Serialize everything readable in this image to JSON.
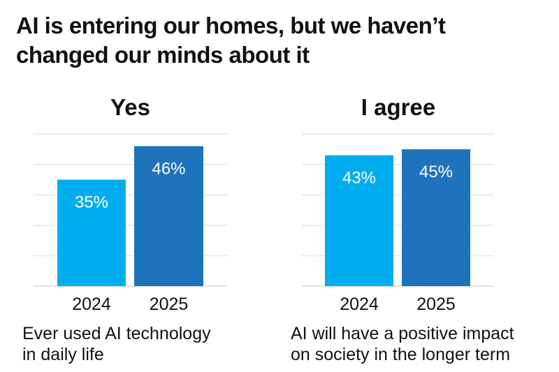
{
  "title_line1": "AI is entering our homes, but we haven’t",
  "title_line2": "changed our minds about it",
  "colors": {
    "bar_2024": "#00aeef",
    "bar_2025": "#1f73bc",
    "grid": "#e6e6e6",
    "text": "#111111",
    "label": "#ffffff"
  },
  "chart_data": [
    {
      "type": "bar",
      "title": "Yes",
      "caption_line1": "Ever used AI technology",
      "caption_line2": "in daily life",
      "categories": [
        "2024",
        "2025"
      ],
      "values": [
        35,
        46
      ],
      "data_labels": [
        "35%",
        "46%"
      ],
      "ylim": [
        0,
        50
      ],
      "grid": true,
      "unit": "%"
    },
    {
      "type": "bar",
      "title": "I agree",
      "caption_line1": "AI will have a positive impact",
      "caption_line2": "on society in the longer term",
      "categories": [
        "2024",
        "2025"
      ],
      "values": [
        43,
        45
      ],
      "data_labels": [
        "43%",
        "45%"
      ],
      "ylim": [
        0,
        50
      ],
      "grid": true,
      "unit": "%"
    }
  ]
}
